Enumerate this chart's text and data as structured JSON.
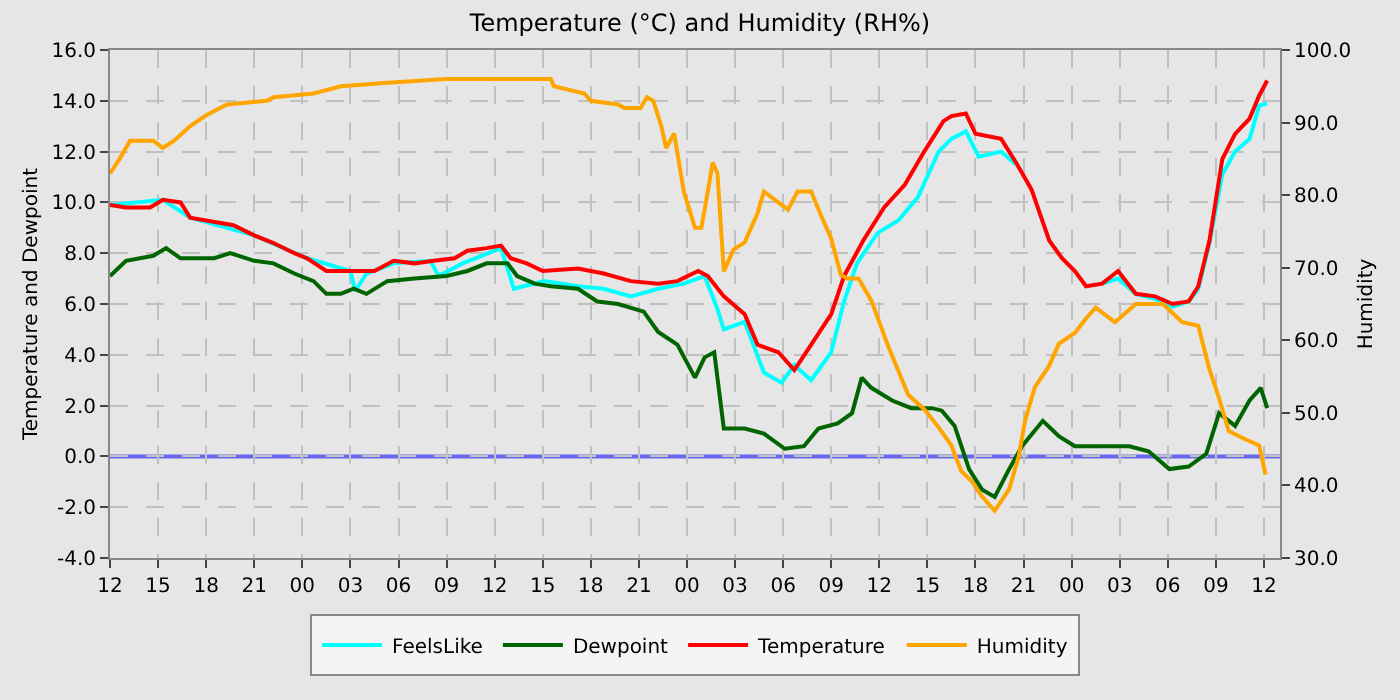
{
  "chart_data": {
    "type": "line",
    "title": "Temperature (°C) and Humidity (RH%)",
    "ylabel": "Temperature and Dewpoint",
    "y2label": "Humidity",
    "xlim": [
      12,
      85
    ],
    "xticks": [
      12,
      15,
      18,
      21,
      {
        "value": 24,
        "label": "00"
      },
      {
        "value": 27,
        "label": "03"
      },
      {
        "value": 30,
        "label": "06"
      },
      {
        "value": 33,
        "label": "09"
      },
      {
        "value": 36,
        "label": "12"
      },
      {
        "value": 39,
        "label": "15"
      },
      {
        "value": 42,
        "label": "18"
      },
      {
        "value": 45,
        "label": "21"
      },
      {
        "value": 48,
        "label": "00"
      },
      {
        "value": 51,
        "label": "03"
      },
      {
        "value": 54,
        "label": "06"
      },
      {
        "value": 57,
        "label": "09"
      },
      {
        "value": 60,
        "label": "12"
      },
      {
        "value": 63,
        "label": "15"
      },
      {
        "value": 66,
        "label": "18"
      },
      {
        "value": 69,
        "label": "21"
      },
      {
        "value": 72,
        "label": "00"
      },
      {
        "value": 75,
        "label": "03"
      },
      {
        "value": 78,
        "label": "06"
      },
      {
        "value": 81,
        "label": "09"
      },
      {
        "value": 84,
        "label": "12"
      }
    ],
    "ylim": [
      -4,
      16
    ],
    "yticks": [
      {
        "value": -4,
        "label": "-4.0"
      },
      {
        "value": -2,
        "label": "-2.0"
      },
      {
        "value": 0,
        "label": "0.0"
      },
      {
        "value": 2,
        "label": "2.0"
      },
      {
        "value": 4,
        "label": "4.0"
      },
      {
        "value": 6,
        "label": "6.0"
      },
      {
        "value": 8,
        "label": "8.0"
      },
      {
        "value": 10,
        "label": "10.0"
      },
      {
        "value": 12,
        "label": "12.0"
      },
      {
        "value": 14,
        "label": "14.0"
      },
      {
        "value": 16,
        "label": "16.0"
      }
    ],
    "y2lim": [
      30,
      100
    ],
    "y2ticks": [
      {
        "value": 30,
        "label": "30.0"
      },
      {
        "value": 40,
        "label": "40.0"
      },
      {
        "value": 50,
        "label": "50.0"
      },
      {
        "value": 60,
        "label": "60.0"
      },
      {
        "value": 70,
        "label": "70.0"
      },
      {
        "value": 80,
        "label": "80.0"
      },
      {
        "value": 90,
        "label": "90.0"
      },
      {
        "value": 100,
        "label": "100.0"
      }
    ],
    "grid": true,
    "legend": "bottom",
    "marker": "none",
    "line_style": "solid",
    "ref_lines": [
      {
        "axis": "y",
        "value": 0,
        "color": "#6666ee"
      }
    ],
    "series": [
      {
        "name": "FeelsLike",
        "color": "#00ffff",
        "x": [
          12,
          15.3,
          17,
          21,
          24.3,
          27,
          27.3,
          28,
          29.7,
          32,
          32.5,
          34,
          36.4,
          37.2,
          37.8,
          39.1,
          41.2,
          42.8,
          44.5,
          46.2,
          47.8,
          49.1,
          49.9,
          50.3,
          51.6,
          52.8,
          53.9,
          54.7,
          55.75,
          57,
          57.8,
          58.6,
          59.9,
          61.2,
          62.4,
          63.7,
          64.5,
          65.4,
          66.2,
          67.6,
          68.5,
          69.5,
          70.6,
          71.4,
          72.2,
          72.9,
          73.9,
          74.9,
          76,
          77.2,
          78.3,
          79.3,
          79.9,
          80.6,
          81.4,
          82.2,
          83.1,
          83.7,
          84.2
        ],
        "values": [
          9.9,
          10.1,
          9.4,
          8.7,
          7.8,
          7.3,
          6.5,
          7.2,
          7.6,
          7.7,
          7.1,
          7.6,
          8.2,
          6.6,
          6.7,
          6.9,
          6.7,
          6.6,
          6.3,
          6.6,
          6.8,
          7.1,
          5.8,
          5.0,
          5.3,
          3.3,
          2.9,
          3.6,
          3.0,
          4.1,
          6.1,
          7.6,
          8.8,
          9.3,
          10.2,
          12.0,
          12.5,
          12.8,
          11.8,
          12.0,
          11.5,
          null,
          null,
          null,
          null,
          null,
          6.8,
          7.0,
          6.4,
          6.2,
          5.9,
          6.1,
          6.6,
          8.4,
          11.1,
          12.0,
          12.5,
          13.8,
          13.9
        ]
      },
      {
        "name": "Dewpoint",
        "color": "#006400",
        "x": [
          12,
          13,
          14.7,
          15.5,
          16.4,
          17,
          18.5,
          19.5,
          21,
          22.2,
          23.5,
          24.7,
          25.5,
          26.4,
          27.2,
          28,
          29.3,
          31,
          33,
          34.3,
          35.5,
          36.8,
          37.4,
          38.5,
          39.5,
          41.2,
          42.4,
          43.7,
          45.3,
          46.2,
          47.4,
          48.5,
          49.1,
          49.7,
          50.3,
          51.6,
          52.8,
          54.1,
          55.3,
          56.2,
          57.4,
          58.3,
          58.9,
          59.5,
          60.8,
          62,
          63.3,
          63.9,
          64.7,
          65.6,
          66.4,
          67.2,
          68.1,
          68.9,
          70.2,
          71.2,
          72.2,
          73.9,
          75.6,
          76.8,
          78.1,
          79.3,
          80.4,
          81.2,
          82.2,
          83.1,
          83.8,
          84.2
        ],
        "values": [
          7.1,
          7.7,
          7.9,
          8.2,
          7.8,
          7.8,
          7.8,
          8.0,
          7.7,
          7.6,
          7.2,
          6.9,
          6.4,
          6.4,
          6.6,
          6.4,
          6.9,
          7.0,
          7.1,
          7.3,
          7.6,
          7.6,
          7.1,
          6.8,
          6.7,
          6.6,
          6.1,
          6.0,
          5.7,
          4.9,
          4.4,
          3.1,
          3.9,
          4.1,
          1.1,
          1.1,
          0.9,
          0.3,
          0.4,
          1.1,
          1.3,
          1.7,
          3.1,
          2.7,
          2.2,
          1.9,
          1.9,
          1.8,
          1.2,
          -0.5,
          -1.3,
          -1.6,
          -0.5,
          0.4,
          1.4,
          0.8,
          0.4,
          0.4,
          0.4,
          0.2,
          -0.5,
          -0.4,
          0.1,
          1.7,
          1.2,
          2.2,
          2.7,
          1.9
        ]
      },
      {
        "name": "Temperature",
        "color": "#ff0000",
        "x": [
          12,
          13,
          14.5,
          15.3,
          16.4,
          17,
          19.7,
          21,
          22.2,
          23.5,
          24.3,
          25.5,
          27.2,
          28.5,
          29.7,
          31,
          32.2,
          33.5,
          34.3,
          35.5,
          36.4,
          37,
          38,
          39,
          41.2,
          42.8,
          44.5,
          46.2,
          47.4,
          48.7,
          49.3,
          50.3,
          51.6,
          52.4,
          53.7,
          54.7,
          55.75,
          57,
          57.8,
          59,
          60.3,
          61.6,
          62.8,
          64,
          64.5,
          65.4,
          66,
          67.6,
          68.5,
          69.5,
          70.6,
          71.4,
          72.2,
          72.9,
          73.9,
          74.9,
          76,
          77.2,
          78.3,
          79.3,
          79.9,
          80.6,
          81.4,
          82.2,
          83.1,
          83.7,
          84.2
        ],
        "values": [
          9.9,
          9.8,
          9.8,
          10.1,
          10.0,
          9.4,
          9.1,
          8.7,
          8.4,
          8.0,
          7.8,
          7.3,
          7.3,
          7.3,
          7.7,
          7.6,
          7.7,
          7.8,
          8.1,
          8.2,
          8.3,
          7.8,
          7.6,
          7.3,
          7.4,
          7.2,
          6.9,
          6.8,
          6.9,
          7.3,
          7.1,
          6.3,
          5.6,
          4.4,
          4.1,
          3.4,
          4.4,
          5.6,
          7.1,
          8.5,
          9.8,
          10.7,
          12.0,
          13.2,
          13.4,
          13.5,
          12.7,
          12.5,
          11.6,
          10.5,
          8.5,
          7.8,
          7.3,
          6.7,
          6.8,
          7.3,
          6.4,
          6.3,
          6.0,
          6.1,
          6.7,
          8.5,
          11.7,
          12.7,
          13.3,
          14.2,
          14.8
        ]
      },
      {
        "name": "Humidity",
        "color": "#ffa500",
        "axis": "y2",
        "x": [
          12,
          12.6,
          13.25,
          14.7,
          15.3,
          16,
          17,
          18,
          19.3,
          21.8,
          22.2,
          24.7,
          26.4,
          29.3,
          33,
          37.8,
          39.5,
          39.7,
          41.6,
          42,
          43.7,
          44.1,
          45.1,
          45.5,
          45.9,
          46.4,
          46.7,
          47.2,
          47.8,
          48.5,
          48.9,
          49.3,
          49.6,
          49.9,
          50.3,
          50.9,
          51.6,
          52.4,
          52.8,
          53.7,
          54.3,
          54.9,
          55.75,
          56.4,
          57,
          57.6,
          58,
          58.7,
          59.5,
          60.5,
          61.8,
          62.8,
          63.7,
          64.5,
          65.1,
          65.8,
          66.4,
          67.2,
          68.1,
          68.7,
          69.1,
          69.7,
          70.6,
          71.2,
          72.2,
          72.9,
          73.5,
          74.7,
          76,
          77.7,
          78.9,
          79.9,
          80.6,
          81.2,
          81.8,
          82.7,
          83.7,
          84.1
        ],
        "values": [
          83,
          85,
          87.5,
          87.5,
          86.5,
          87.5,
          89.5,
          91,
          92.5,
          93,
          93.5,
          94,
          95,
          95.5,
          96,
          96,
          96,
          95,
          94,
          93,
          92.5,
          92,
          92,
          93.5,
          93,
          89.5,
          86.5,
          88.5,
          80.5,
          75.5,
          75.5,
          80.5,
          84.5,
          83,
          69.5,
          72.5,
          73.5,
          77.5,
          80.5,
          79,
          78,
          80.5,
          80.5,
          77,
          74,
          69,
          68.5,
          68.5,
          65.5,
          59.5,
          52.5,
          50.5,
          48,
          45.5,
          42,
          40.5,
          38.5,
          36.5,
          39.5,
          44,
          49,
          53.5,
          56.5,
          59.5,
          61,
          63,
          64.5,
          62.5,
          65,
          65,
          62.5,
          62,
          56,
          52,
          47.5,
          46.5,
          45.5,
          41.5
        ]
      }
    ]
  }
}
